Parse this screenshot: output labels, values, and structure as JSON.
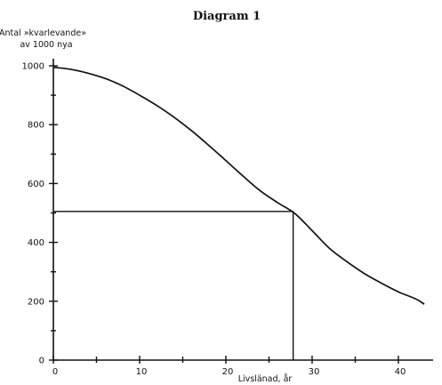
{
  "chart_data": {
    "type": "line",
    "title": "Diagram 1",
    "ylabel_lines": [
      "Antal »kvarlevande»",
      "av 1000 nya"
    ],
    "xlabel": "Livslänad, år",
    "xlim": [
      0,
      44
    ],
    "ylim": [
      0,
      1000
    ],
    "x_ticks": [
      0,
      10,
      20,
      30,
      40
    ],
    "x_minor_ticks": [
      5,
      15,
      25,
      35
    ],
    "y_ticks": [
      0,
      200,
      400,
      600,
      800,
      1000
    ],
    "y_minor_ticks": [
      100,
      300,
      500,
      700,
      900
    ],
    "grid": false,
    "series": [
      {
        "x": [
          0,
          2,
          4,
          6,
          8,
          10,
          12,
          14,
          16,
          18,
          20,
          22,
          24,
          26,
          28,
          30,
          32,
          34,
          36,
          38,
          40,
          42,
          43
        ],
        "y": [
          995,
          988,
          975,
          957,
          932,
          900,
          865,
          825,
          780,
          730,
          678,
          625,
          575,
          535,
          498,
          440,
          380,
          335,
          295,
          262,
          232,
          208,
          190
        ]
      }
    ],
    "guide_point": {
      "x": 27.8,
      "y": 505
    }
  }
}
